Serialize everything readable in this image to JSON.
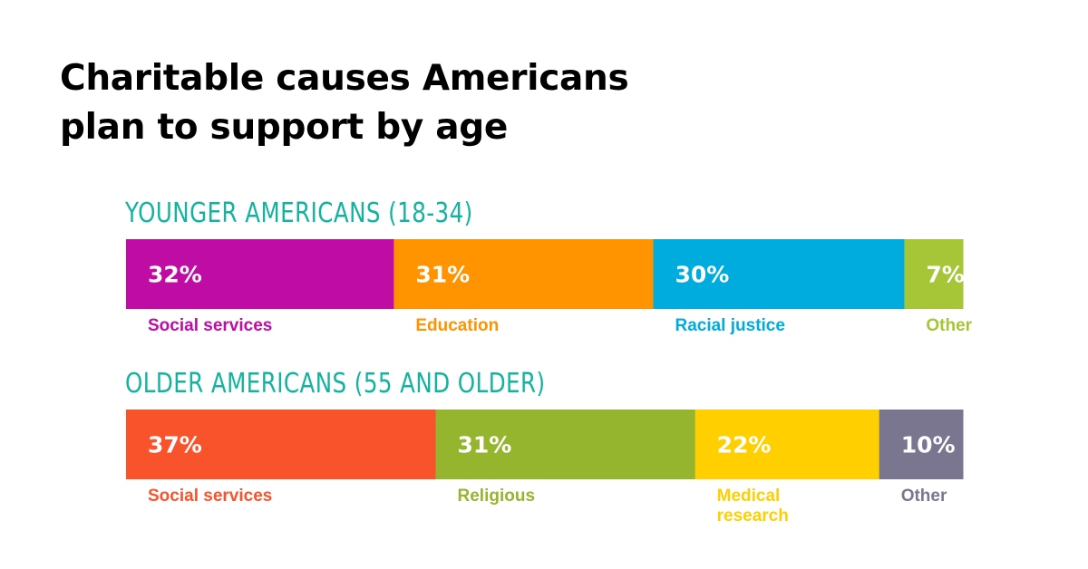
{
  "title_line1": "Charitable causes Americans",
  "title_line2": "plan to support by age",
  "chart_data": {
    "type": "bar",
    "orientation": "horizontal-stacked",
    "xlim": [
      0,
      100
    ],
    "groups": [
      {
        "label": "YOUNGER AMERICANS (18-34)",
        "segments": [
          {
            "name": "Social services",
            "value": 32,
            "display": "32%",
            "color": "#BE0CA5",
            "label_lines": [
              "Social services"
            ]
          },
          {
            "name": "Education",
            "value": 31,
            "display": "31%",
            "color": "#FF9300",
            "label_lines": [
              "Education"
            ]
          },
          {
            "name": "Racial justice",
            "value": 30,
            "display": "30%",
            "color": "#00ACDE",
            "label_lines": [
              "Racial justice"
            ]
          },
          {
            "name": "Other",
            "value": 7,
            "display": "7%",
            "color": "#A6C638",
            "label_lines": [
              "Other"
            ]
          }
        ]
      },
      {
        "label": "OLDER AMERICANS (55 AND OLDER)",
        "segments": [
          {
            "name": "Social services",
            "value": 37,
            "display": "37%",
            "color": "#F9532B",
            "label_lines": [
              "Social services"
            ]
          },
          {
            "name": "Religious",
            "value": 31,
            "display": "31%",
            "color": "#95B52E",
            "label_lines": [
              "Religious"
            ]
          },
          {
            "name": "Medical research",
            "value": 22,
            "display": "22%",
            "color": "#FFCF00",
            "label_lines": [
              "Medical",
              "research"
            ]
          },
          {
            "name": "Other",
            "value": 10,
            "display": "10%",
            "color": "#7A7690",
            "label_lines": [
              "Other"
            ]
          }
        ]
      }
    ]
  }
}
